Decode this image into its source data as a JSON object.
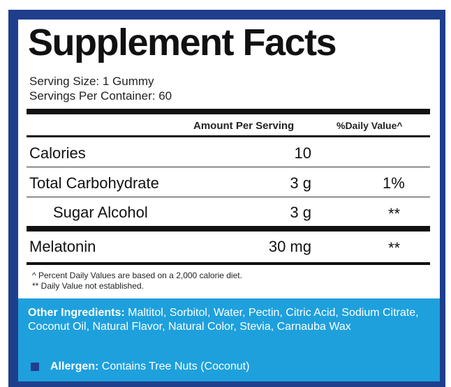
{
  "label": {
    "title": "Supplement Facts",
    "serving_size": "Serving Size: 1 Gummy",
    "servings_per_container": "Servings Per Container: 60",
    "header_amount": "Amount Per Serving",
    "header_daily_value": "%Daily Value^",
    "rows": [
      {
        "name": "Calories",
        "amount": "10",
        "daily_value": ""
      },
      {
        "name": "Total Carbohydrate",
        "amount": "3 g",
        "daily_value": "1%"
      },
      {
        "name": "Sugar Alcohol",
        "amount": "3 g",
        "daily_value": "**"
      },
      {
        "name": "Melatonin",
        "amount": "30 mg",
        "daily_value": "**"
      }
    ],
    "footnote_1": "^ Percent Daily Values are based on a 2,000 calorie diet.",
    "footnote_2": "** Daily Value not established."
  },
  "other": {
    "ingredients_label": "Other Ingredients:",
    "ingredients_text": " Maltitol, Sorbitol, Water, Pectin, Citric Acid, Sodium Citrate, Coconut Oil, Natural Flavor, Natural Color, Stevia, Carnauba Wax",
    "allergen_label": "Allergen:",
    "allergen_text": " Contains Tree Nuts (Coconut)"
  },
  "colors": {
    "frame": "#1f3f8c",
    "info_box": "#1ea0dd"
  }
}
